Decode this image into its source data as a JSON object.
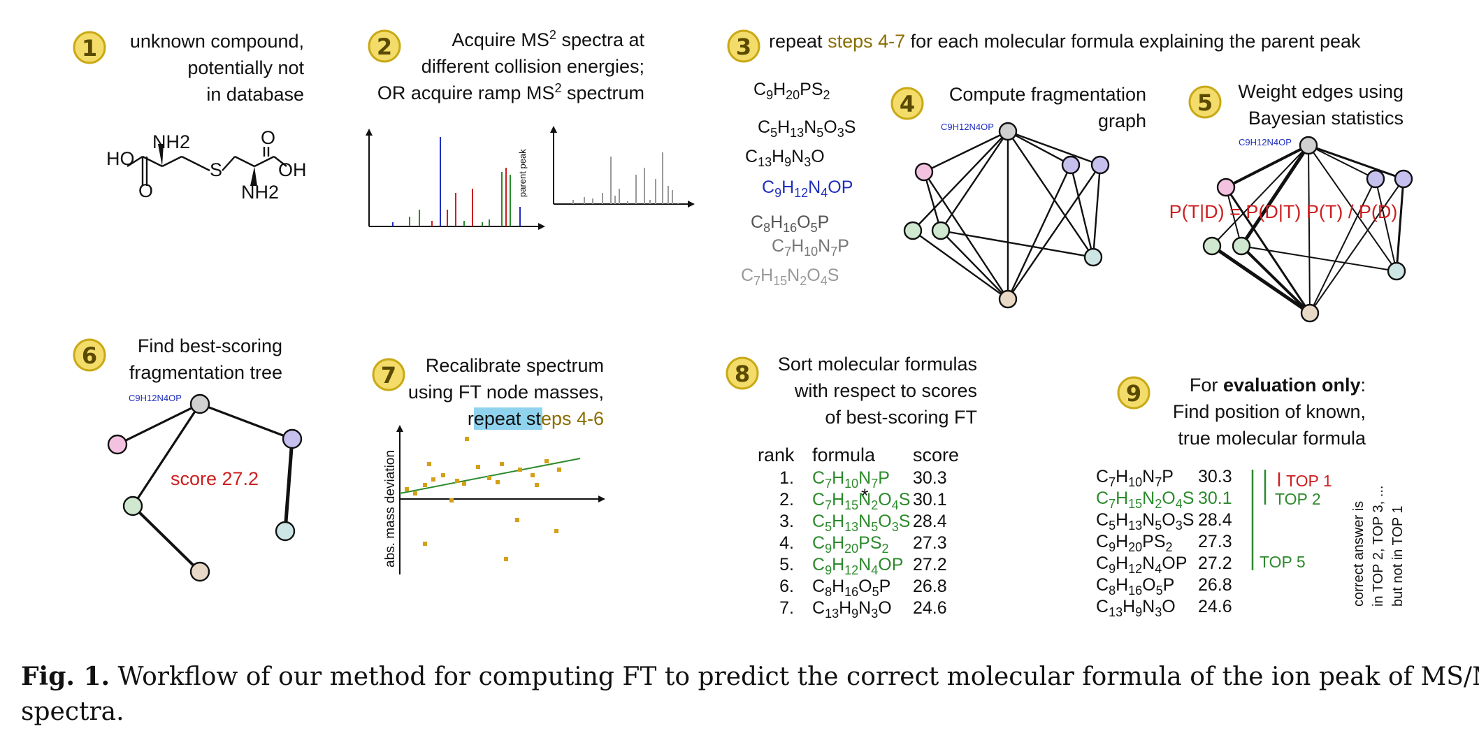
{
  "colors": {
    "badge_fill": "#f3dc6a",
    "badge_stroke": "#c9a915",
    "accent_olive": "#8a6d00",
    "green": "#2c8a2c",
    "red": "#cc1f1f",
    "blue": "#1f2fbf",
    "grey": "#8a8a8a",
    "highlight": "#8fd3ef",
    "node_grey": "#d0d0d0",
    "node_pink": "#f3c2e0",
    "node_purple": "#c5c0ee",
    "node_green": "#cfe8cf",
    "node_teal": "#cde5e5",
    "node_tan": "#e8d8c6",
    "point_orange": "#d4a017"
  },
  "steps": {
    "s1": {
      "num": "1",
      "lines": [
        "unknown compound,",
        "potentially not",
        "in database"
      ]
    },
    "s2": {
      "num": "2",
      "line1": "Acquire MS",
      "line1_sup": "2",
      "line1_end": " spectra at",
      "line2": "different collision energies;",
      "line3": "OR acquire ramp MS",
      "line3_sup": "2",
      "line3_end": " spectrum",
      "parent_peak": "parent peak"
    },
    "s3": {
      "num": "3",
      "pre": "repeat ",
      "accent": "steps 4-7",
      "post": " for each molecular formula explaining the parent peak"
    },
    "s4": {
      "num": "4",
      "lines": [
        "Compute fragmentation",
        "graph"
      ]
    },
    "s5": {
      "num": "5",
      "lines": [
        "Weight edges using",
        "Bayesian statistics"
      ],
      "bayes": "P(T|D) = P(D|T) P(T) / P(D)"
    },
    "s6": {
      "num": "6",
      "lines": [
        "Find best-scoring",
        "fragmentation tree"
      ],
      "score": "score 27.2"
    },
    "s7": {
      "num": "7",
      "line1": "Recalibrate spectrum",
      "line2": "using FT node masses,",
      "line3_pre": "r",
      "line3_hl": "epeat st",
      "line3_post": "eps 4-6",
      "ylabel": "abs. mass deviation"
    },
    "s8": {
      "num": "8",
      "lines": [
        "Sort molecular formulas",
        "with respect to scores",
        "of best-scoring FT"
      ],
      "headers": [
        "rank",
        "formula",
        "score"
      ]
    },
    "s9": {
      "num": "9",
      "line1_pre": "For ",
      "line1_bold": "evaluation only",
      "line1_post": ":",
      "line2": "Find position of known,",
      "line3": "true molecular formula",
      "marker": "*",
      "top1": "TOP 1",
      "top2": "TOP 2",
      "top5": "TOP 5",
      "note": [
        "correct answer is",
        "in TOP 2, TOP 3, ...",
        "but not in TOP 1"
      ]
    }
  },
  "formula_tag": "C9H12N4OP",
  "candidate_formulas": [
    {
      "id": "C9H20PS2",
      "color": "#111"
    },
    {
      "id": "C5H13N5O3S",
      "color": "#111"
    },
    {
      "id": "C13H9N3O",
      "color": "#111"
    },
    {
      "id": "C9H12N4OP",
      "color": "#1f2fbf"
    },
    {
      "id": "C8H16O5P",
      "color": "#555"
    },
    {
      "id": "C7H10N7P",
      "color": "#777"
    },
    {
      "id": "C7H15N2O4S",
      "color": "#999"
    }
  ],
  "ranking": [
    {
      "rank": "1.",
      "formula": "C7H10N7P",
      "score": "30.3"
    },
    {
      "rank": "2.",
      "formula": "C7H15N2O4S",
      "score": "30.1"
    },
    {
      "rank": "3.",
      "formula": "C5H13N5O3S",
      "score": "28.4"
    },
    {
      "rank": "4.",
      "formula": "C9H20PS2",
      "score": "27.3"
    },
    {
      "rank": "5.",
      "formula": "C9H12N4OP",
      "score": "27.2"
    },
    {
      "rank": "6.",
      "formula": "C8H16O5P",
      "score": "26.8"
    },
    {
      "rank": "7.",
      "formula": "C13H9N3O",
      "score": "24.6"
    }
  ],
  "molecule_labels": [
    "NH2",
    "HO",
    "O",
    "S",
    "O",
    "OH",
    "NH2"
  ],
  "caption": {
    "bold": "Fig. 1.",
    "text": " Workflow of our method for computing FT to predict the correct molecular formula of the ion peak of MS/MS",
    "line2": "spectra."
  }
}
